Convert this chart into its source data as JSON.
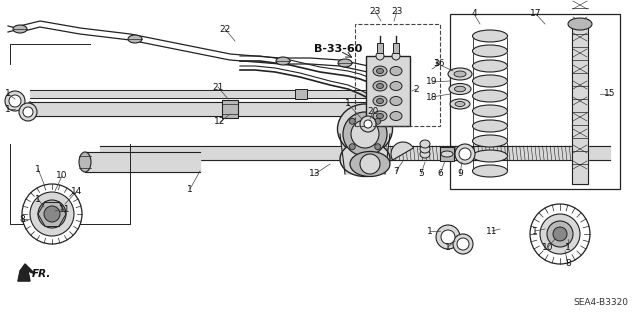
{
  "bg_color": "#ffffff",
  "fig_width": 6.4,
  "fig_height": 3.19,
  "dpi": 100,
  "diagram_ref": "SEA4-B3320",
  "bold_label": "B-33-60",
  "fr_label": "FR.",
  "lc": "#222222",
  "font_size_label": 6.5,
  "font_size_ref": 6.5,
  "font_size_bold": 8.0
}
